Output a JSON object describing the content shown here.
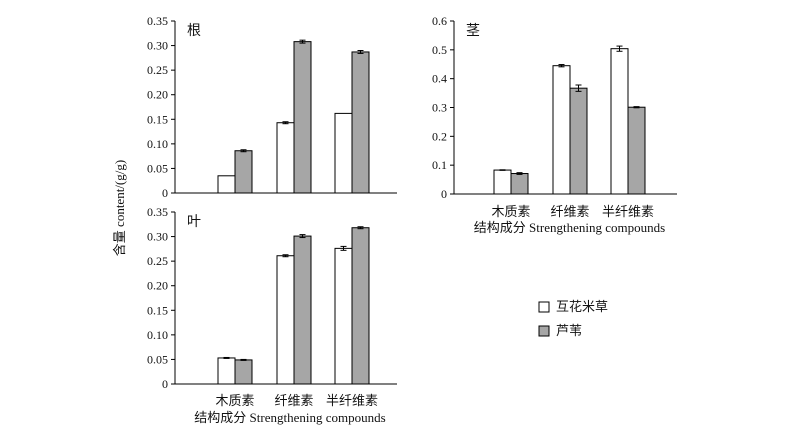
{
  "figure": {
    "ylabel": "含量 content/(g/g)",
    "legend": [
      {
        "name": "互花米草",
        "color": "#ffffff"
      },
      {
        "name": "芦苇",
        "color": "#a6a6a6"
      }
    ],
    "legend_placement": "right"
  },
  "chart_data": [
    {
      "type": "bar",
      "title": "根",
      "categories": [
        "木质素",
        "纤维素",
        "半纤维素"
      ],
      "show_category_labels": false,
      "xlabel": "",
      "ylabel": "含量 content/(g/g)",
      "ylim": [
        0,
        0.35
      ],
      "yticks": [
        "0",
        "0.05",
        "0.10",
        "0.15",
        "0.20",
        "0.25",
        "0.30",
        "0.35"
      ],
      "series": [
        {
          "name": "互花米草",
          "values": [
            0.035,
            0.143,
            0.162
          ],
          "errors": [
            0.0,
            0.002,
            0.0
          ],
          "color": "#ffffff"
        },
        {
          "name": "芦苇",
          "values": [
            0.086,
            0.308,
            0.287
          ],
          "errors": [
            0.002,
            0.003,
            0.003
          ],
          "color": "#a6a6a6"
        }
      ]
    },
    {
      "type": "bar",
      "title": "叶",
      "categories": [
        "木质素",
        "纤维素",
        "半纤维素"
      ],
      "show_category_labels": true,
      "xlabel": "结构成分 Strengthening compounds",
      "ylabel": "含量 content/(g/g)",
      "ylim": [
        0,
        0.35
      ],
      "yticks": [
        "0",
        "0.05",
        "0.10",
        "0.15",
        "0.20",
        "0.25",
        "0.30",
        "0.35"
      ],
      "series": [
        {
          "name": "互花米草",
          "values": [
            0.053,
            0.261,
            0.276
          ],
          "errors": [
            0.001,
            0.002,
            0.004
          ],
          "color": "#ffffff"
        },
        {
          "name": "芦苇",
          "values": [
            0.049,
            0.301,
            0.318
          ],
          "errors": [
            0.001,
            0.003,
            0.002
          ],
          "color": "#a6a6a6"
        }
      ]
    },
    {
      "type": "bar",
      "title": "茎",
      "categories": [
        "木质素",
        "纤维素",
        "半纤维素"
      ],
      "show_category_labels": true,
      "xlabel": "结构成分 Strengthening compounds",
      "ylabel": "",
      "ylim": [
        0,
        0.6
      ],
      "yticks": [
        "0",
        "0.1",
        "0.2",
        "0.3",
        "0.4",
        "0.5",
        "0.6"
      ],
      "series": [
        {
          "name": "互花米草",
          "values": [
            0.083,
            0.445,
            0.504
          ],
          "errors": [
            0.001,
            0.004,
            0.009
          ],
          "color": "#ffffff"
        },
        {
          "name": "芦苇",
          "values": [
            0.071,
            0.367,
            0.301
          ],
          "errors": [
            0.003,
            0.011,
            0.002
          ],
          "color": "#a6a6a6"
        }
      ]
    }
  ]
}
